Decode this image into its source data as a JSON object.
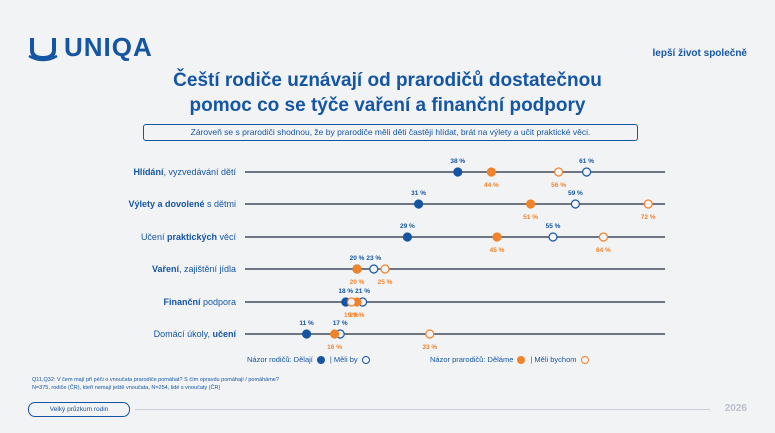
{
  "brand": {
    "name": "UNIQA",
    "tagline": "lepší život společně",
    "accent": "#1556a4",
    "orange": "#f0832b"
  },
  "title_line1": "Čeští rodiče uznávají od prarodičů dostatečnou",
  "title_line2": "pomoc co se týče vaření a finanční podpory",
  "subtitle": "Zároveň se s prarodiči shodnou, že by prarodiče měli děti častěji hlídat, brát na výlety a učit praktické věci.",
  "legend": {
    "parents_label": "Názor rodičů: Dělají",
    "parents_would": "| Měli by",
    "grand_label": "Názor prarodičů: Děláme",
    "grand_would": "| Měli bychom"
  },
  "footnote_line1": "Q11,Q32: V čem mají při péči o vnoučata prarodiče pomáhat? S čím opravdu pomáhají / pomáháme?",
  "footnote_line2": "N=375, rodiče (ČR), kteří nemají ještě vnoučata, N=254, lidé s vnoučaty (ČR)",
  "badge": "Velký průzkum rodin",
  "year": "2026",
  "chart_data": {
    "type": "scatter",
    "unit": "%",
    "xlim": [
      0,
      75
    ],
    "categories": [
      {
        "bold": "Hlídání",
        "rest": ", vyzvedávání dětí",
        "order": "bold-first"
      },
      {
        "bold": "Výlety a dovolené",
        "rest": " s dětmi",
        "order": "bold-first"
      },
      {
        "bold": "praktických",
        "pre": "Učení ",
        "rest": " věcí",
        "order": "middle"
      },
      {
        "bold": "Vaření",
        "rest": ", zajištění jídla",
        "order": "bold-first"
      },
      {
        "bold": "Finanční",
        "rest": " podpora",
        "order": "bold-first"
      },
      {
        "bold": "učení",
        "pre": "Domácí úkoly, ",
        "rest": "",
        "order": "middle"
      }
    ],
    "series": [
      {
        "name": "Názor rodičů: Dělají",
        "color": "#1556a4",
        "filled": true,
        "values": [
          38,
          31,
          29,
          20,
          18,
          11
        ]
      },
      {
        "name": "Názor rodičů: Měli by",
        "color": "#1556a4",
        "filled": false,
        "values": [
          61,
          59,
          55,
          23,
          21,
          17
        ]
      },
      {
        "name": "Názor prarodičů: Děláme",
        "color": "#f0832b",
        "filled": true,
        "values": [
          44,
          51,
          45,
          20,
          20,
          16
        ]
      },
      {
        "name": "Názor prarodičů: Měli bychom",
        "color": "#f0832b",
        "filled": false,
        "values": [
          56,
          72,
          64,
          25,
          19,
          33
        ]
      }
    ]
  }
}
